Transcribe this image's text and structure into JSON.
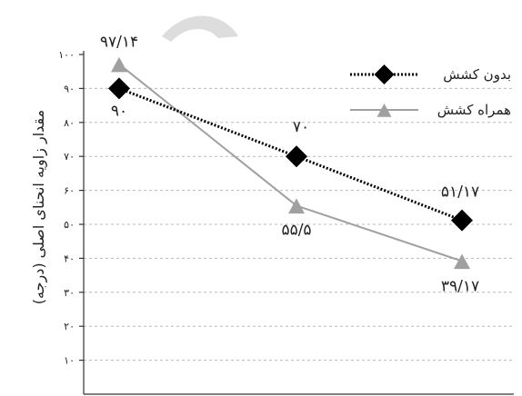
{
  "chart_data": {
    "type": "line",
    "categories": [
      "",
      "",
      ""
    ],
    "ylabel": "مقدار زاویه انحنای اصلی (درجه)",
    "ylim": [
      0,
      100
    ],
    "yticks": [
      {
        "value": 10,
        "label": "۱۰"
      },
      {
        "value": 20,
        "label": "۲۰"
      },
      {
        "value": 30,
        "label": "۳۰"
      },
      {
        "value": 40,
        "label": "۴۰"
      },
      {
        "value": 50,
        "label": "۵۰"
      },
      {
        "value": 60,
        "label": "۶۰"
      },
      {
        "value": 70,
        "label": "۷۰"
      },
      {
        "value": 80,
        "label": "۸۰"
      },
      {
        "value": 90,
        "label": "۹۰"
      },
      {
        "value": 100,
        "label": "۱۰۰"
      }
    ],
    "grid": true,
    "legend_position": "top-right",
    "series": [
      {
        "name": "بدون کشش",
        "marker": "diamond",
        "line": "dotted",
        "color": "#000000",
        "values": [
          90,
          70,
          51.17
        ],
        "labels": [
          "۹۰",
          "۷۰",
          "۵۱/۱۷"
        ]
      },
      {
        "name": "همراه کشش",
        "marker": "triangle",
        "line": "solid",
        "color": "#a0a0a0",
        "values": [
          97.14,
          55.5,
          39.17
        ],
        "labels": [
          "۹۷/۱۴",
          "۵۵/۵",
          "۳۹/۱۷"
        ]
      }
    ]
  }
}
